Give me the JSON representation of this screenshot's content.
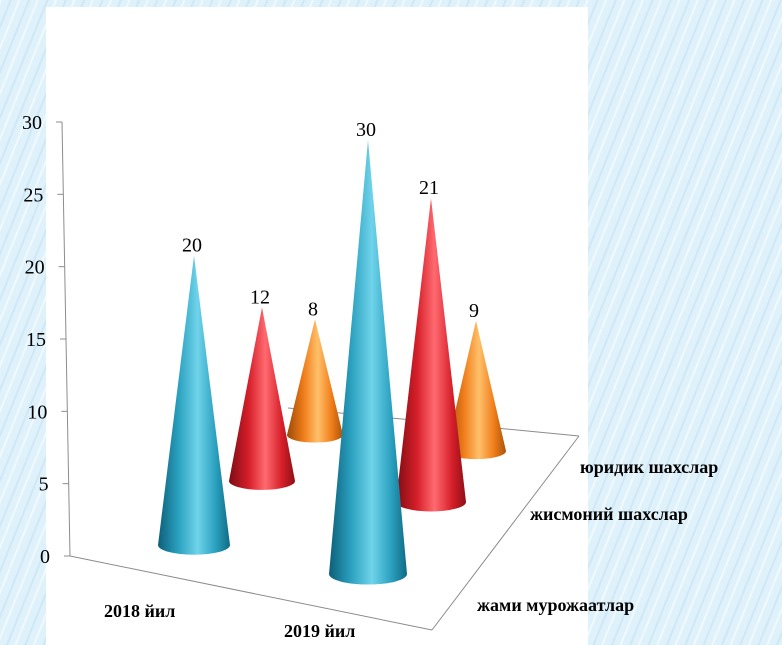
{
  "chart_data": {
    "type": "bar",
    "subtype": "3d-cone",
    "categories": [
      "2018 йил",
      "2019 йил"
    ],
    "series": [
      {
        "name": "жами мурожаатлар",
        "values": [
          20,
          30
        ],
        "color": "#2a9fbd"
      },
      {
        "name": "жисмоний шахслар",
        "values": [
          12,
          21
        ],
        "color": "#d6202a"
      },
      {
        "name": "юридик шахслар",
        "values": [
          8,
          9
        ],
        "color": "#f07d1a"
      }
    ],
    "ylim": [
      0,
      30
    ],
    "yticks": [
      "0",
      "5",
      "10",
      "15",
      "20",
      "25",
      "30"
    ],
    "data_labels": [
      "20",
      "12",
      "8",
      "30",
      "21",
      "9"
    ],
    "grid": false,
    "legend": "series names on depth axis (right)"
  }
}
